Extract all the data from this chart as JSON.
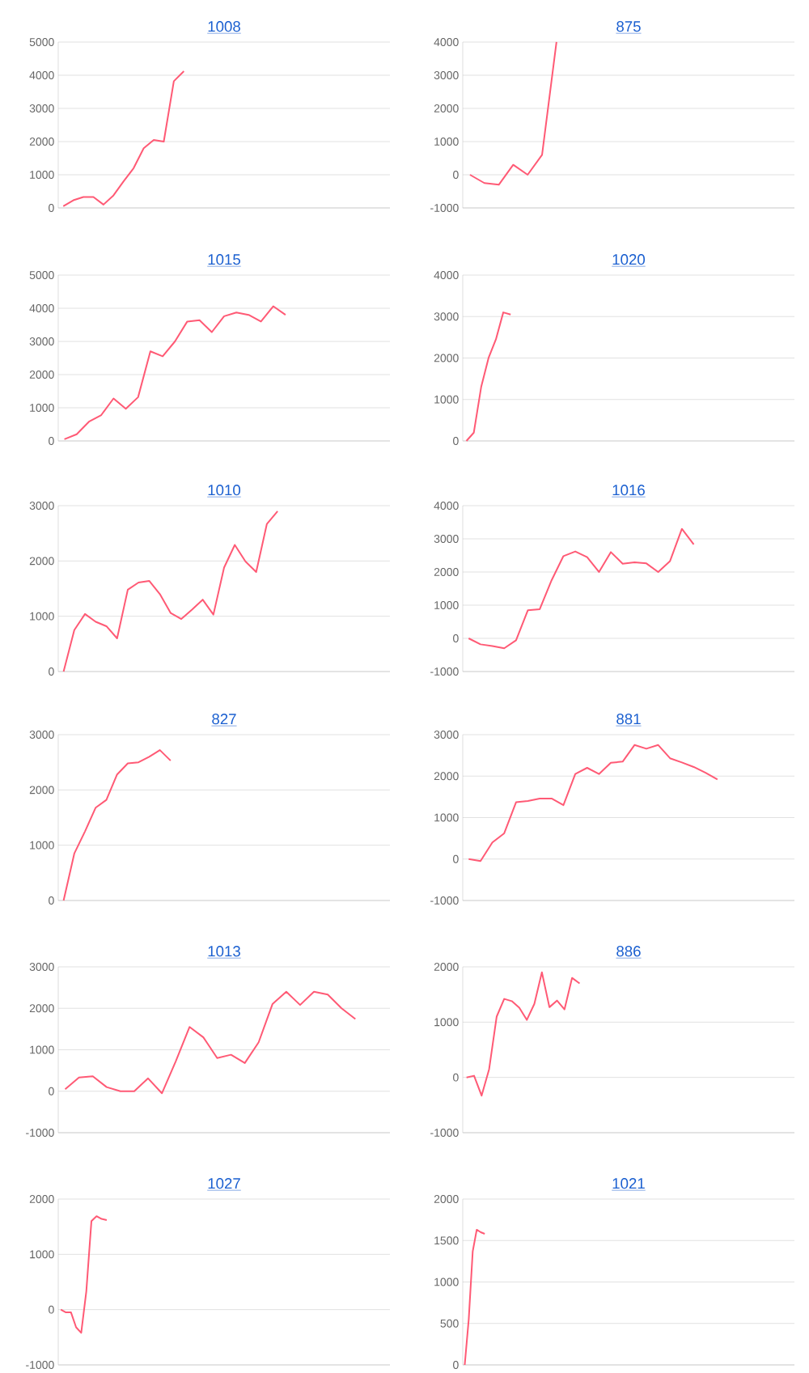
{
  "chart_data": [
    {
      "type": "line",
      "title": "1008",
      "categories": [
        null,
        null,
        null,
        null,
        null,
        null,
        null,
        null,
        null,
        null,
        null,
        null,
        null,
        null,
        null,
        null,
        null,
        null,
        null,
        null,
        null,
        null,
        null,
        null,
        null,
        null,
        null,
        null,
        null,
        null,
        null,
        null,
        null
      ],
      "values": [
        50,
        230,
        330,
        330,
        100,
        380,
        800,
        1200,
        1800,
        2050,
        2000,
        3820,
        4120,
        null,
        null,
        null,
        null,
        null,
        null,
        null,
        null,
        null,
        null,
        null,
        null,
        null,
        null,
        null,
        null,
        null,
        null,
        null,
        null
      ],
      "color": "#ff5a75",
      "ylim": [
        0,
        5000
      ],
      "yticks": [
        0,
        1000,
        2000,
        3000,
        4000,
        5000
      ],
      "grid": "y",
      "tick_labels": "y",
      "marker": "none",
      "line_style": "solid"
    },
    {
      "type": "line",
      "title": "875",
      "categories": [
        null,
        null,
        null,
        null,
        null,
        null,
        null,
        null,
        null,
        null,
        null,
        null,
        null,
        null,
        null,
        null,
        null,
        null,
        null,
        null,
        null,
        null,
        null
      ],
      "values": [
        0,
        -250,
        -300,
        300,
        0,
        600,
        4000,
        null,
        null,
        null,
        null,
        null,
        null,
        null,
        null,
        null,
        null,
        null,
        null,
        null,
        null,
        null,
        null
      ],
      "color": "#ff5a75",
      "ylim": [
        -1000,
        4000
      ],
      "yticks": [
        -1000,
        0,
        1000,
        2000,
        3000,
        4000
      ],
      "grid": "y",
      "tick_labels": "y",
      "marker": "none",
      "line_style": "solid"
    },
    {
      "type": "line",
      "title": "1015",
      "categories": [
        null,
        null,
        null,
        null,
        null,
        null,
        null,
        null,
        null,
        null,
        null,
        null,
        null,
        null,
        null,
        null,
        null,
        null,
        null,
        null,
        null,
        null,
        null,
        null,
        null,
        null,
        null
      ],
      "values": [
        50,
        200,
        580,
        780,
        1280,
        970,
        1320,
        2700,
        2550,
        3000,
        3600,
        3640,
        3280,
        3760,
        3870,
        3800,
        3600,
        4060,
        3800,
        null,
        null,
        null,
        null,
        null,
        null,
        null,
        null
      ],
      "color": "#ff5a75",
      "ylim": [
        0,
        5000
      ],
      "yticks": [
        0,
        1000,
        2000,
        3000,
        4000,
        5000
      ],
      "grid": "y",
      "tick_labels": "y",
      "marker": "none",
      "line_style": "solid"
    },
    {
      "type": "line",
      "title": "1020",
      "categories": [
        null,
        null,
        null,
        null,
        null,
        null,
        null,
        null,
        null,
        null,
        null,
        null,
        null,
        null,
        null,
        null,
        null,
        null,
        null,
        null,
        null,
        null,
        null,
        null,
        null,
        null,
        null,
        null,
        null,
        null,
        null,
        null,
        null,
        null,
        null,
        null,
        null,
        null,
        null,
        null,
        null,
        null,
        null,
        null,
        null
      ],
      "values": [
        0,
        200,
        1300,
        2000,
        2450,
        3100,
        3050,
        null,
        null,
        null,
        null,
        null,
        null,
        null,
        null,
        null,
        null,
        null,
        null,
        null,
        null,
        null,
        null,
        null,
        null,
        null,
        null,
        null,
        null,
        null,
        null,
        null,
        null,
        null,
        null,
        null,
        null,
        null,
        null,
        null,
        null,
        null,
        null,
        null,
        null
      ],
      "color": "#ff5a75",
      "ylim": [
        0,
        4000
      ],
      "yticks": [
        0,
        1000,
        2000,
        3000,
        4000
      ],
      "grid": "y",
      "tick_labels": "y",
      "marker": "none",
      "line_style": "solid"
    },
    {
      "type": "line",
      "title": "1010",
      "categories": [
        null,
        null,
        null,
        null,
        null,
        null,
        null,
        null,
        null,
        null,
        null,
        null,
        null,
        null,
        null,
        null,
        null,
        null,
        null,
        null,
        null,
        null,
        null,
        null,
        null,
        null,
        null,
        null,
        null,
        null,
        null
      ],
      "values": [
        0,
        750,
        1040,
        900,
        820,
        600,
        1480,
        1610,
        1640,
        1400,
        1060,
        950,
        1120,
        1300,
        1030,
        1880,
        2290,
        1990,
        1800,
        2670,
        2900,
        null,
        null,
        null,
        null,
        null,
        null,
        null,
        null,
        null,
        null
      ],
      "color": "#ff5a75",
      "ylim": [
        0,
        3000
      ],
      "yticks": [
        0,
        1000,
        2000,
        3000
      ],
      "grid": "y",
      "tick_labels": "y",
      "marker": "none",
      "line_style": "solid"
    },
    {
      "type": "line",
      "title": "1016",
      "categories": [
        null,
        null,
        null,
        null,
        null,
        null,
        null,
        null,
        null,
        null,
        null,
        null,
        null,
        null,
        null,
        null,
        null,
        null,
        null,
        null,
        null,
        null,
        null,
        null,
        null,
        null,
        null,
        null
      ],
      "values": [
        0,
        -180,
        -230,
        -300,
        -60,
        850,
        880,
        1750,
        2480,
        2620,
        2450,
        2000,
        2600,
        2250,
        2290,
        2260,
        2000,
        2330,
        3300,
        2830,
        null,
        null,
        null,
        null,
        null,
        null,
        null,
        null
      ],
      "color": "#ff5a75",
      "ylim": [
        -1000,
        4000
      ],
      "yticks": [
        -1000,
        0,
        1000,
        2000,
        3000,
        4000
      ],
      "grid": "y",
      "tick_labels": "y",
      "marker": "none",
      "line_style": "solid"
    },
    {
      "type": "line",
      "title": "827",
      "categories": [
        null,
        null,
        null,
        null,
        null,
        null,
        null,
        null,
        null,
        null,
        null,
        null,
        null,
        null,
        null,
        null,
        null,
        null,
        null,
        null,
        null,
        null,
        null,
        null,
        null,
        null,
        null,
        null,
        null,
        null,
        null
      ],
      "values": [
        0,
        850,
        1250,
        1680,
        1820,
        2280,
        2480,
        2500,
        2600,
        2720,
        2530,
        null,
        null,
        null,
        null,
        null,
        null,
        null,
        null,
        null,
        null,
        null,
        null,
        null,
        null,
        null,
        null,
        null,
        null,
        null,
        null
      ],
      "color": "#ff5a75",
      "ylim": [
        0,
        3000
      ],
      "yticks": [
        0,
        1000,
        2000,
        3000
      ],
      "grid": "y",
      "tick_labels": "y",
      "marker": "none",
      "line_style": "solid"
    },
    {
      "type": "line",
      "title": "881",
      "categories": [
        null,
        null,
        null,
        null,
        null,
        null,
        null,
        null,
        null,
        null,
        null,
        null,
        null,
        null,
        null,
        null,
        null,
        null,
        null,
        null,
        null,
        null,
        null,
        null,
        null,
        null,
        null,
        null
      ],
      "values": [
        0,
        -50,
        400,
        620,
        1370,
        1400,
        1460,
        1460,
        1300,
        2050,
        2200,
        2050,
        2320,
        2350,
        2750,
        2660,
        2750,
        2430,
        2330,
        2220,
        2080,
        1920,
        null,
        null,
        null,
        null,
        null,
        null
      ],
      "color": "#ff5a75",
      "ylim": [
        -1000,
        3000
      ],
      "yticks": [
        -1000,
        0,
        1000,
        2000,
        3000
      ],
      "grid": "y",
      "tick_labels": "y",
      "marker": "none",
      "line_style": "solid"
    },
    {
      "type": "line",
      "title": "1013",
      "categories": [
        null,
        null,
        null,
        null,
        null,
        null,
        null,
        null,
        null,
        null,
        null,
        null,
        null,
        null,
        null,
        null,
        null,
        null,
        null,
        null,
        null,
        null,
        null,
        null
      ],
      "values": [
        50,
        330,
        360,
        100,
        0,
        0,
        310,
        -50,
        720,
        1550,
        1300,
        800,
        880,
        680,
        1180,
        2100,
        2400,
        2080,
        2400,
        2330,
        2000,
        1740,
        null,
        null
      ],
      "color": "#ff5a75",
      "ylim": [
        -1000,
        3000
      ],
      "yticks": [
        -1000,
        0,
        1000,
        2000,
        3000
      ],
      "grid": "y",
      "tick_labels": "y",
      "marker": "none",
      "line_style": "solid"
    },
    {
      "type": "line",
      "title": "886",
      "categories": [
        null,
        null,
        null,
        null,
        null,
        null,
        null,
        null,
        null,
        null,
        null,
        null,
        null,
        null,
        null,
        null,
        null,
        null,
        null,
        null,
        null,
        null,
        null,
        null,
        null,
        null,
        null,
        null,
        null,
        null,
        null,
        null,
        null,
        null,
        null,
        null,
        null,
        null,
        null,
        null,
        null,
        null,
        null,
        null
      ],
      "values": [
        0,
        30,
        -330,
        150,
        1100,
        1420,
        1380,
        1260,
        1040,
        1330,
        1900,
        1270,
        1390,
        1230,
        1800,
        1700,
        null,
        null,
        null,
        null,
        null,
        null,
        null,
        null,
        null,
        null,
        null,
        null,
        null,
        null,
        null,
        null,
        null,
        null,
        null,
        null,
        null,
        null,
        null,
        null,
        null,
        null,
        null,
        null
      ],
      "color": "#ff5a75",
      "ylim": [
        -1000,
        2000
      ],
      "yticks": [
        -1000,
        0,
        1000,
        2000
      ],
      "grid": "y",
      "tick_labels": "y",
      "marker": "none",
      "line_style": "solid"
    },
    {
      "type": "line",
      "title": "1027",
      "categories": [
        null,
        null,
        null,
        null,
        null,
        null,
        null,
        null,
        null,
        null,
        null,
        null,
        null,
        null,
        null,
        null,
        null,
        null,
        null,
        null,
        null,
        null,
        null,
        null,
        null,
        null,
        null,
        null,
        null,
        null,
        null,
        null,
        null,
        null,
        null,
        null,
        null,
        null,
        null,
        null,
        null,
        null,
        null,
        null,
        null,
        null,
        null,
        null,
        null,
        null,
        null,
        null,
        null,
        null,
        null,
        null,
        null,
        null,
        null,
        null,
        null,
        null,
        null,
        null,
        null
      ],
      "values": [
        0,
        -50,
        -50,
        -320,
        -420,
        330,
        1600,
        1690,
        1640,
        1620,
        null,
        null,
        null,
        null,
        null,
        null,
        null,
        null,
        null,
        null,
        null,
        null,
        null,
        null,
        null,
        null,
        null,
        null,
        null,
        null,
        null,
        null,
        null,
        null,
        null,
        null,
        null,
        null,
        null,
        null,
        null,
        null,
        null,
        null,
        null,
        null,
        null,
        null,
        null,
        null,
        null,
        null,
        null,
        null,
        null,
        null,
        null,
        null,
        null,
        null,
        null,
        null,
        null,
        null,
        null
      ],
      "color": "#ff5a75",
      "ylim": [
        -1000,
        2000
      ],
      "yticks": [
        -1000,
        0,
        1000,
        2000
      ],
      "grid": "y",
      "tick_labels": "y",
      "marker": "none",
      "line_style": "solid"
    },
    {
      "type": "line",
      "title": "1021",
      "categories": [
        null,
        null,
        null,
        null,
        null,
        null,
        null,
        null,
        null,
        null,
        null,
        null,
        null,
        null,
        null,
        null,
        null,
        null,
        null,
        null,
        null,
        null,
        null,
        null,
        null,
        null,
        null,
        null,
        null,
        null,
        null,
        null,
        null,
        null,
        null,
        null,
        null,
        null,
        null,
        null,
        null,
        null,
        null,
        null,
        null,
        null,
        null,
        null,
        null,
        null,
        null,
        null,
        null,
        null,
        null,
        null,
        null,
        null,
        null,
        null,
        null,
        null,
        null,
        null,
        null,
        null,
        null,
        null,
        null,
        null,
        null,
        null,
        null,
        null,
        null,
        null,
        null,
        null,
        null,
        null,
        null,
        null,
        null
      ],
      "values": [
        0,
        550,
        1370,
        1630,
        1600,
        1580,
        null,
        null,
        null,
        null,
        null,
        null,
        null,
        null,
        null,
        null,
        null,
        null,
        null,
        null,
        null,
        null,
        null,
        null,
        null,
        null,
        null,
        null,
        null,
        null,
        null,
        null,
        null,
        null,
        null,
        null,
        null,
        null,
        null,
        null,
        null,
        null,
        null,
        null,
        null,
        null,
        null,
        null,
        null,
        null,
        null,
        null,
        null,
        null,
        null,
        null,
        null,
        null,
        null,
        null,
        null,
        null,
        null,
        null,
        null,
        null,
        null,
        null,
        null,
        null,
        null,
        null,
        null,
        null,
        null,
        null,
        null,
        null,
        null,
        null,
        null,
        null,
        null
      ],
      "color": "#ff5a75",
      "ylim": [
        0,
        2000
      ],
      "yticks": [
        0,
        500,
        1000,
        1500,
        2000
      ],
      "grid": "y",
      "tick_labels": "y",
      "marker": "none",
      "line_style": "solid"
    }
  ]
}
